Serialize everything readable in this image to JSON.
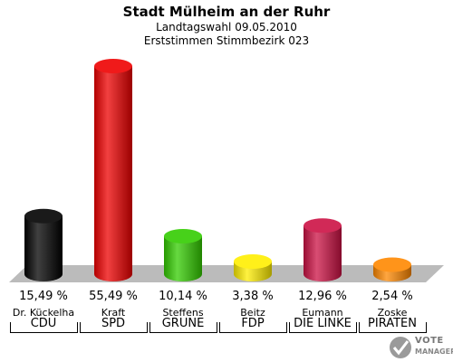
{
  "header": {
    "title": "Stadt Mülheim an der Ruhr",
    "subtitle": "Landtagswahl 09.05.2010",
    "subtitle2": "Erststimmen Stimmbezirk 023"
  },
  "chart_data": {
    "type": "bar",
    "title": "Stadt Mülheim an der Ruhr",
    "subtitle": "Landtagswahl 09.05.2010 — Erststimmen Stimmbezirk 023",
    "categories": [
      "CDU",
      "SPD",
      "GRÜNE",
      "FDP",
      "DIE LINKE",
      "PIRATEN"
    ],
    "candidates": [
      "Dr. Kückelha",
      "Kraft",
      "Steffens",
      "Beitz",
      "Eumann",
      "Zoske"
    ],
    "values": [
      15.49,
      55.49,
      10.14,
      3.38,
      12.96,
      2.54
    ],
    "value_labels": [
      "15,49 %",
      "55,49 %",
      "10,14 %",
      "3,38 %",
      "12,96 %",
      "2,54 %"
    ],
    "colors": [
      "#000000",
      "#ee0000",
      "#33cc00",
      "#ffee00",
      "#cc1144",
      "#ff8800"
    ],
    "ylim": [
      0,
      55.49
    ],
    "grid": false,
    "legend": "none"
  },
  "logo": {
    "line1": "VOTE",
    "line2": "MANAGER",
    "icon": "ballot-check-icon"
  }
}
